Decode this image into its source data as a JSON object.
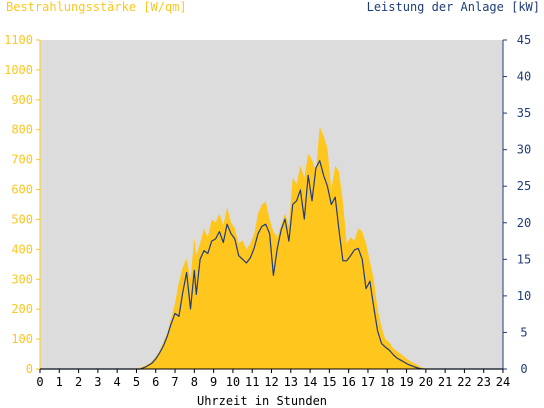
{
  "chart_data": {
    "type": "area",
    "title_left": "Bestrahlungsstärke [W/qm]",
    "title_right": "Leistung der Anlage [kW]",
    "xlabel": "Uhrzeit in Stunden",
    "xlim": [
      0,
      24
    ],
    "x_ticks": [
      "0",
      "1",
      "2",
      "3",
      "4",
      "5",
      "6",
      "7",
      "8",
      "9",
      "10",
      "11",
      "12",
      "13",
      "14",
      "15",
      "16",
      "17",
      "18",
      "19",
      "20",
      "21",
      "22",
      "23",
      "24"
    ],
    "ylim_left": [
      0,
      1100
    ],
    "y_ticks_left": [
      "0",
      "100",
      "200",
      "300",
      "400",
      "500",
      "600",
      "700",
      "800",
      "900",
      "1000",
      "1100"
    ],
    "ylim_right": [
      0,
      45
    ],
    "y_ticks_right": [
      "0",
      "5",
      "10",
      "15",
      "20",
      "25",
      "30",
      "35",
      "40",
      "45"
    ],
    "grid": false,
    "colors": {
      "plot_background": "#dcdcdc",
      "irradiance_fill": "#ffc61e",
      "power_line": "#1f3c7a",
      "left_axis": "#ffc61e",
      "right_axis": "#1f3c7a"
    },
    "series": [
      {
        "axis": "left",
        "style": "filled-area",
        "x": [
          0,
          5.0,
          5.2,
          5.5,
          5.8,
          6.0,
          6.2,
          6.4,
          6.6,
          6.8,
          7.0,
          7.2,
          7.4,
          7.6,
          7.8,
          8.0,
          8.1,
          8.3,
          8.5,
          8.7,
          8.9,
          9.1,
          9.3,
          9.5,
          9.7,
          9.9,
          10.1,
          10.3,
          10.5,
          10.7,
          10.9,
          11.1,
          11.3,
          11.5,
          11.7,
          11.9,
          12.1,
          12.3,
          12.5,
          12.7,
          12.9,
          13.1,
          13.3,
          13.5,
          13.7,
          13.9,
          14.1,
          14.3,
          14.5,
          14.7,
          14.9,
          15.1,
          15.3,
          15.5,
          15.7,
          15.9,
          16.1,
          16.3,
          16.5,
          16.7,
          16.9,
          17.1,
          17.3,
          17.5,
          17.7,
          17.9,
          18.1,
          18.3,
          18.5,
          18.7,
          18.9,
          19.1,
          19.3,
          19.5,
          19.7,
          19.9,
          20.1,
          24
        ],
        "y": [
          0,
          0,
          5,
          12,
          25,
          40,
          60,
          90,
          120,
          170,
          220,
          290,
          340,
          370,
          300,
          440,
          380,
          420,
          470,
          440,
          500,
          490,
          520,
          480,
          540,
          490,
          470,
          420,
          430,
          400,
          420,
          450,
          520,
          550,
          560,
          500,
          460,
          440,
          480,
          520,
          480,
          640,
          620,
          680,
          640,
          720,
          700,
          660,
          810,
          780,
          740,
          600,
          680,
          660,
          560,
          420,
          440,
          430,
          470,
          460,
          420,
          360,
          300,
          200,
          140,
          100,
          90,
          70,
          60,
          50,
          40,
          30,
          22,
          15,
          8,
          3,
          0,
          0
        ]
      },
      {
        "axis": "right",
        "style": "line",
        "x": [
          0,
          5.2,
          5.5,
          5.8,
          6.0,
          6.2,
          6.4,
          6.6,
          6.8,
          7.0,
          7.2,
          7.4,
          7.6,
          7.8,
          8.0,
          8.1,
          8.3,
          8.5,
          8.7,
          8.9,
          9.1,
          9.3,
          9.5,
          9.7,
          9.9,
          10.1,
          10.3,
          10.5,
          10.7,
          10.9,
          11.1,
          11.3,
          11.5,
          11.7,
          11.9,
          12.1,
          12.3,
          12.5,
          12.7,
          12.9,
          13.1,
          13.3,
          13.5,
          13.7,
          13.9,
          14.1,
          14.3,
          14.5,
          14.7,
          14.9,
          15.1,
          15.3,
          15.5,
          15.7,
          15.9,
          16.1,
          16.3,
          16.5,
          16.7,
          16.9,
          17.1,
          17.3,
          17.5,
          17.7,
          17.9,
          18.1,
          18.3,
          18.5,
          18.7,
          18.9,
          19.1,
          19.3,
          19.5,
          19.7,
          19.9,
          24
        ],
        "y": [
          0,
          0,
          0.3,
          0.8,
          1.4,
          2.2,
          3.2,
          4.5,
          6.2,
          7.6,
          7.2,
          10.5,
          13.2,
          8.2,
          13.5,
          10.2,
          15.0,
          16.2,
          15.8,
          17.5,
          17.8,
          18.8,
          17.3,
          19.8,
          18.5,
          17.8,
          15.5,
          15.0,
          14.5,
          15.2,
          16.5,
          18.5,
          19.5,
          19.8,
          18.5,
          12.8,
          16.5,
          19.0,
          20.5,
          17.5,
          22.5,
          23.0,
          24.5,
          20.5,
          26.5,
          23.0,
          27.5,
          28.5,
          26.5,
          25.0,
          22.5,
          23.5,
          19.0,
          14.8,
          14.8,
          15.5,
          16.3,
          16.5,
          15.0,
          11.0,
          12.0,
          8.5,
          5.2,
          3.5,
          3.0,
          2.6,
          2.0,
          1.5,
          1.2,
          0.9,
          0.6,
          0.4,
          0.2,
          0.05,
          0,
          0
        ]
      }
    ]
  }
}
